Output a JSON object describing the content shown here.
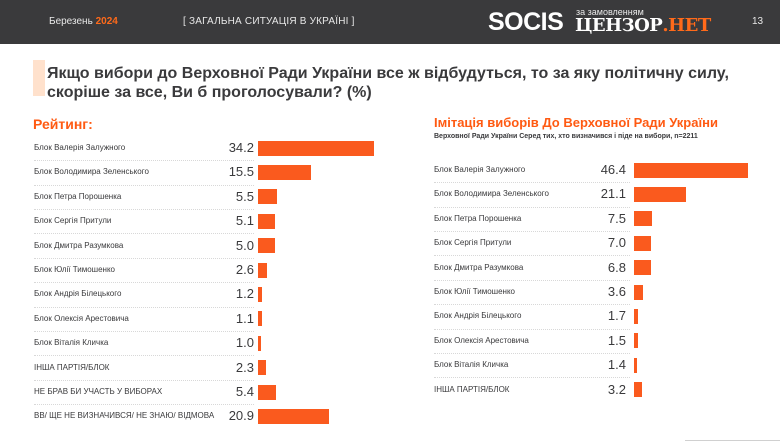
{
  "header": {
    "date_label": "Березень",
    "date_year": "2024",
    "section": "[ ЗАГАЛЬНА СИТУАЦІЯ В УКРАЇНІ ]",
    "brand": "SOCIS",
    "ordered_by": "за замовленням",
    "partner_main": "ЦЕНЗОР",
    "partner_suffix": ".НЕТ",
    "page_number": "13"
  },
  "question": "Якщо вибори до Верховної Ради України все ж відбудуться, то за яку політичну силу, скоріше за все, Ви б проголосували? (%)",
  "colors": {
    "accent": "#fa5a1e",
    "title_orange": "#ff5a12",
    "header_bg": "#3a3a3c",
    "text": "#3a3a3c"
  },
  "chart_data": [
    {
      "type": "bar",
      "orientation": "horizontal",
      "title": "Рейтинг:",
      "categories": [
        "Блок Валерія Залужного",
        "Блок Володимира Зеленського",
        "Блок Петра Порошенка",
        "Блок Сергія Притули",
        "Блок Дмитра Разумкова",
        "Блок Юлії Тимошенко",
        "Блок Андрія Білецького",
        "Блок Олексія Арестовича",
        "Блок Віталія Кличка",
        "ІНША ПАРТІЯ/БЛОК",
        "НЕ БРАВ БИ УЧАСТЬ У ВИБОРАХ",
        "ВВ/ ЩЕ НЕ ВИЗНАЧИВСЯ/ НЕ ЗНАЮ/ ВІДМОВА"
      ],
      "values": [
        34.2,
        15.5,
        5.5,
        5.1,
        5.0,
        2.6,
        1.2,
        1.1,
        1.0,
        2.3,
        5.4,
        20.9
      ],
      "value_labels": [
        "34.2",
        "15.5",
        "5.5",
        "5.1",
        "5.0",
        "2.6",
        "1.2",
        "1.1",
        "1.0",
        "2.3",
        "5.4",
        "20.9"
      ]
    },
    {
      "type": "bar",
      "orientation": "horizontal",
      "title": "Імітація виборів До Верховної Ради України",
      "subtitle": "Верховної Ради України Серед тих, хто визначився і піде на вибори, n=2211",
      "categories": [
        "Блок Валерія Залужного",
        "Блок Володимира Зеленського",
        "Блок Петра Порошенка",
        "Блок Сергія Притули",
        "Блок Дмитра Разумкова",
        "Блок Юлії Тимошенко",
        "Блок Андрія Білецького",
        "Блок Олексія Арестовича",
        "Блок Віталія Кличка",
        "ІНША ПАРТІЯ/БЛОК"
      ],
      "values": [
        46.4,
        21.1,
        7.5,
        7.0,
        6.8,
        3.6,
        1.7,
        1.5,
        1.4,
        3.2
      ],
      "value_labels": [
        "46.4",
        "21.1",
        "7.5",
        "7.0",
        "6.8",
        "3.6",
        "1.7",
        "1.5",
        "1.4",
        "3.2"
      ]
    }
  ]
}
